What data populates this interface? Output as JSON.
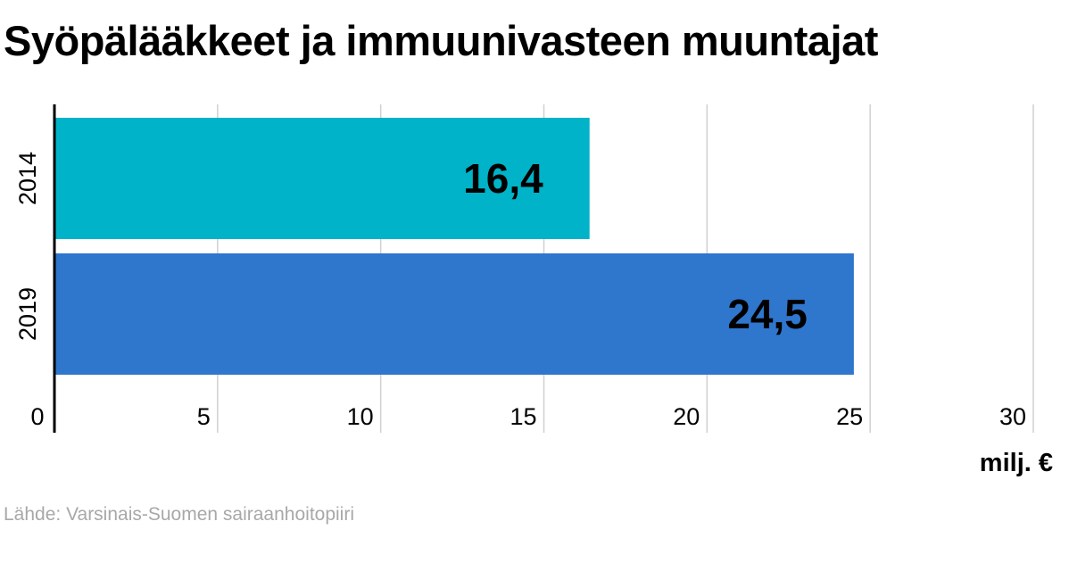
{
  "title": "Syöpälääkkeet ja immuunivasteen muuntajat",
  "source": "Lähde: Varsinais-Suomen sairaanhoitopiiri",
  "chart_data": {
    "type": "bar",
    "orientation": "horizontal",
    "categories": [
      "2014",
      "2019"
    ],
    "values": [
      16.4,
      24.5
    ],
    "value_labels": [
      "16,4",
      "24,5"
    ],
    "bar_colors": [
      "#00b3c8",
      "#2f76cd"
    ],
    "xlabel": "milj. €",
    "xlim": [
      0,
      30
    ],
    "xticks": [
      0,
      5,
      10,
      15,
      20,
      25,
      30
    ],
    "grid": true
  }
}
